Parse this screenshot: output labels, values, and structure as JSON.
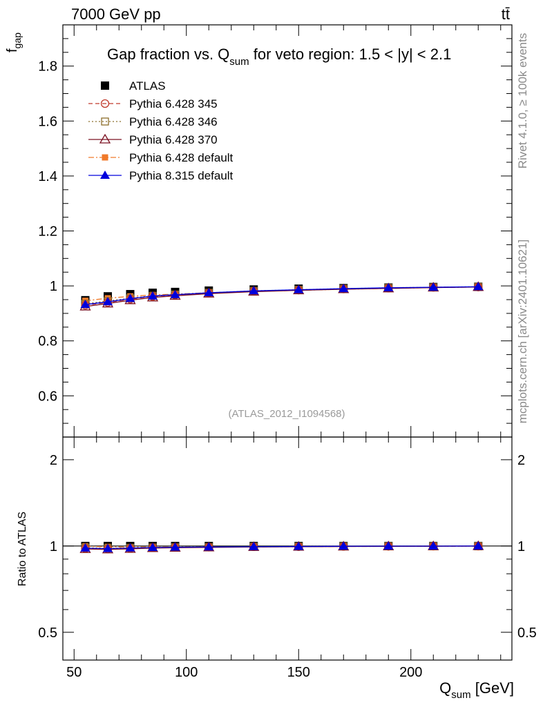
{
  "header": {
    "left": "7000 GeV pp",
    "right": "tt̄"
  },
  "side_labels": {
    "upper": "Rivet 4.1.0, ≥ 100k events",
    "lower": "mcplots.cern.ch [arXiv:2401.10621]"
  },
  "watermark": "(ATLAS_2012_I1094568)",
  "colors": {
    "atlas": "#000000",
    "p345": "#c0392b",
    "p346": "#8b6d2a",
    "p370": "#7b1020",
    "p6def": "#f07a2a",
    "p8def": "#0000dd"
  },
  "chart_data": [
    {
      "type": "line",
      "title": "Gap fraction vs. Q",
      "title_sub": "sum",
      "title_suffix": " for veto region: 1.5 < |y| < 2.1",
      "ylabel": "f",
      "ylabel_sub": "gap",
      "xlim": [
        45,
        245
      ],
      "ylim": [
        0.45,
        1.95
      ],
      "yticks": [
        0.6,
        0.8,
        1.0,
        1.2,
        1.4,
        1.6,
        1.8
      ],
      "ytick_labels": [
        "0.6",
        "0.8",
        "1",
        "1.2",
        "1.4",
        "1.6",
        "1.8"
      ],
      "x": [
        55,
        65,
        75,
        85,
        95,
        110,
        130,
        150,
        170,
        190,
        210,
        230
      ],
      "legend": [
        {
          "label": "ATLAS",
          "key": "atlas"
        },
        {
          "label": "Pythia 6.428 345",
          "key": "p345"
        },
        {
          "label": "Pythia 6.428 346",
          "key": "p346"
        },
        {
          "label": "Pythia 6.428 370",
          "key": "p370"
        },
        {
          "label": "Pythia 6.428 default",
          "key": "p6def"
        },
        {
          "label": "Pythia 8.315 default",
          "key": "p8def"
        }
      ],
      "series": [
        {
          "key": "atlas",
          "name": "ATLAS",
          "marker": "square-filled",
          "line": "none",
          "values": [
            0.948,
            0.962,
            0.97,
            0.975,
            0.978,
            0.983,
            0.987,
            0.99,
            0.992,
            0.994,
            0.996,
            0.997
          ]
        },
        {
          "key": "p345",
          "name": "Pythia 6.428 345",
          "marker": "circle-open",
          "line": "dashed",
          "values": [
            0.93,
            0.94,
            0.952,
            0.962,
            0.967,
            0.974,
            0.981,
            0.985,
            0.989,
            0.992,
            0.995,
            0.996
          ]
        },
        {
          "key": "p346",
          "name": "Pythia 6.428 346",
          "marker": "square-open",
          "line": "dotted",
          "values": [
            0.935,
            0.945,
            0.955,
            0.964,
            0.969,
            0.975,
            0.982,
            0.986,
            0.99,
            0.993,
            0.995,
            0.997
          ]
        },
        {
          "key": "p370",
          "name": "Pythia 6.428 370",
          "marker": "triangle-open",
          "line": "solid",
          "values": [
            0.925,
            0.936,
            0.948,
            0.958,
            0.964,
            0.972,
            0.979,
            0.984,
            0.988,
            0.991,
            0.994,
            0.996
          ]
        },
        {
          "key": "p6def",
          "name": "Pythia 6.428 default",
          "marker": "square-filled-small",
          "line": "dashdot",
          "values": [
            0.946,
            0.955,
            0.962,
            0.967,
            0.97,
            0.975,
            0.98,
            0.984,
            0.988,
            0.991,
            0.994,
            0.996
          ]
        },
        {
          "key": "p8def",
          "name": "Pythia 8.315 default",
          "marker": "triangle-filled",
          "line": "solid",
          "values": [
            0.932,
            0.942,
            0.954,
            0.963,
            0.968,
            0.975,
            0.982,
            0.986,
            0.99,
            0.993,
            0.995,
            0.997
          ]
        }
      ]
    },
    {
      "type": "line",
      "ylabel": "Ratio to ATLAS",
      "xlabel": "Q",
      "xlabel_sub": "sum",
      "xlabel_suffix": " [GeV]",
      "xlim": [
        45,
        245
      ],
      "ylim": [
        0.4,
        2.4
      ],
      "xticks": [
        50,
        100,
        150,
        200
      ],
      "xtick_labels": [
        "50",
        "100",
        "150",
        "200"
      ],
      "yticks": [
        0.5,
        1,
        2
      ],
      "ytick_labels": [
        "0.5",
        "1",
        "2"
      ],
      "reference": 1.0,
      "series": [
        {
          "key": "p345",
          "values": [
            0.981,
            0.977,
            0.981,
            0.987,
            0.989,
            0.991,
            0.994,
            0.995,
            0.997,
            0.998,
            0.999,
            0.999
          ]
        },
        {
          "key": "p346",
          "values": [
            0.986,
            0.982,
            0.985,
            0.989,
            0.991,
            0.992,
            0.995,
            0.996,
            0.998,
            0.999,
            0.999,
            1.0
          ]
        },
        {
          "key": "p370",
          "values": [
            0.976,
            0.973,
            0.977,
            0.983,
            0.986,
            0.989,
            0.992,
            0.994,
            0.996,
            0.997,
            0.998,
            0.999
          ]
        },
        {
          "key": "p6def",
          "values": [
            0.998,
            0.993,
            0.992,
            0.992,
            0.992,
            0.992,
            0.993,
            0.994,
            0.996,
            0.997,
            0.998,
            0.999
          ]
        },
        {
          "key": "p8def",
          "values": [
            0.983,
            0.979,
            0.984,
            0.988,
            0.99,
            0.992,
            0.995,
            0.996,
            0.998,
            0.999,
            0.999,
            1.0
          ]
        }
      ]
    }
  ]
}
